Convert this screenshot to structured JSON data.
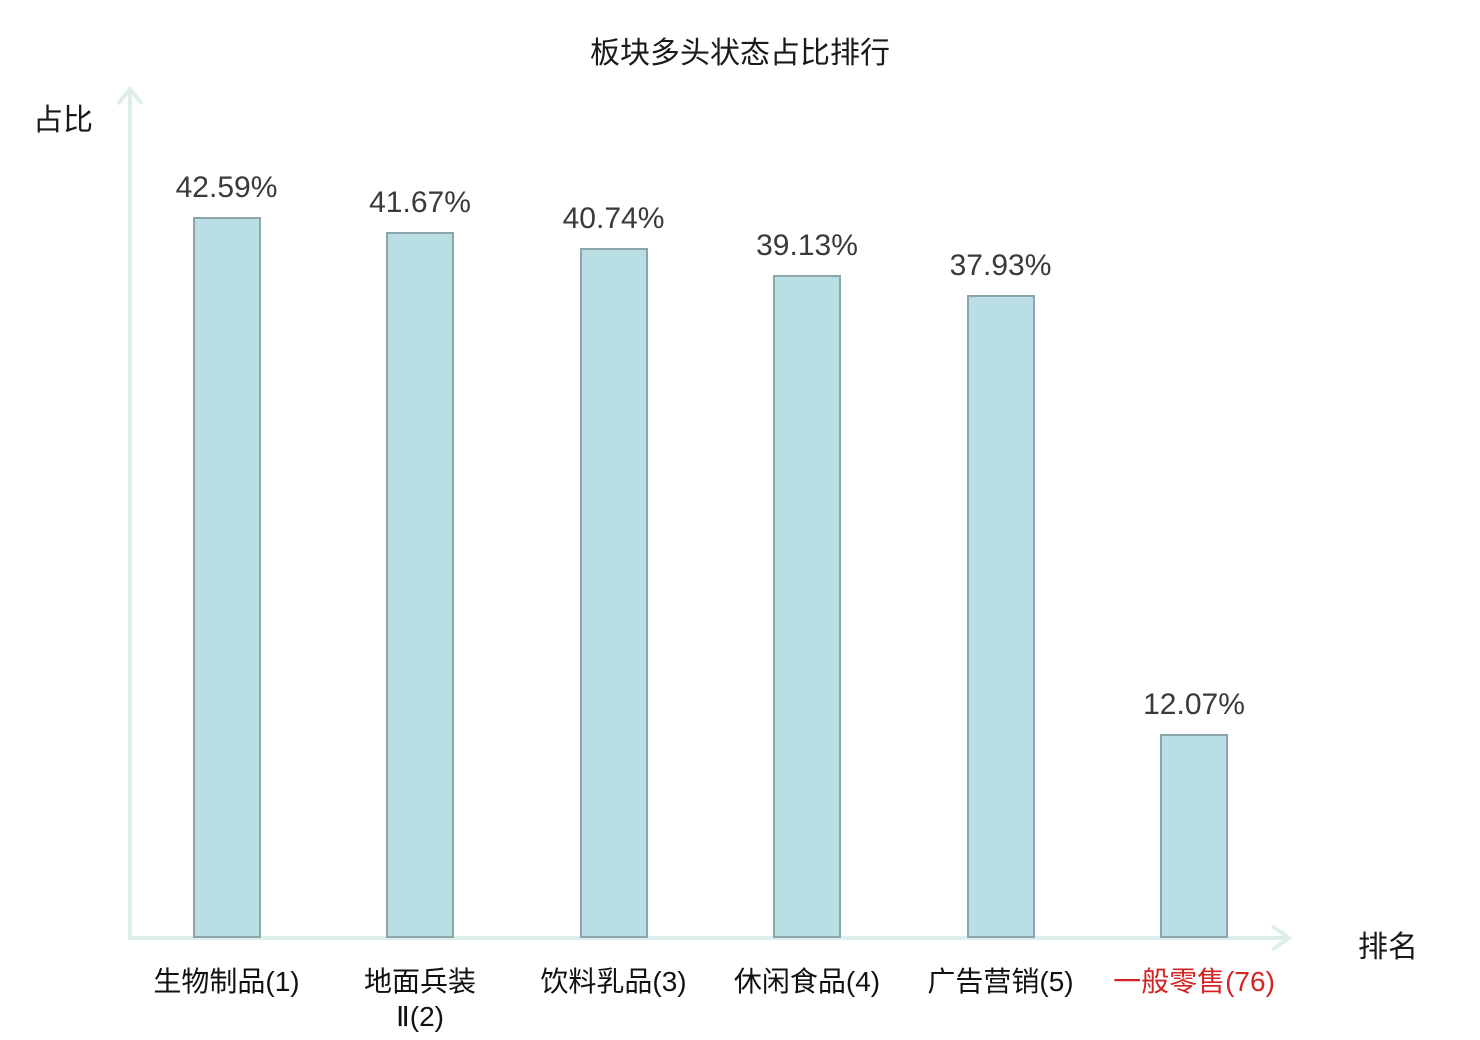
{
  "title": "板块多头状态占比排行",
  "axes": {
    "y_label": "占比",
    "x_label": "排名"
  },
  "colors": {
    "background": "#ffffff",
    "bar_fill": "#b9dee3",
    "bar_border": "#8aa6ab",
    "axis": "#deeeea",
    "title_text": "#1a1a1a",
    "value_text": "#3a3a3a",
    "tick_text": "#111111",
    "highlight_text": "#d42424"
  },
  "chart_data": {
    "type": "bar",
    "title": "板块多头状态占比排行",
    "xlabel": "排名",
    "ylabel": "占比",
    "categories": [
      "生物制品(1)",
      "地面兵装Ⅱ(2)",
      "饮料乳品(3)",
      "休闲食品(4)",
      "广告营销(5)",
      "一般零售(76)"
    ],
    "category_lines": [
      [
        "生物制品(1)"
      ],
      [
        "地面兵装",
        "Ⅱ(2)"
      ],
      [
        "饮料乳品(3)"
      ],
      [
        "休闲食品(4)"
      ],
      [
        "广告营销(5)"
      ],
      [
        "一般零售(76)"
      ]
    ],
    "ranks": [
      1,
      2,
      3,
      4,
      5,
      76
    ],
    "values": [
      42.59,
      41.67,
      40.74,
      39.13,
      37.93,
      12.07
    ],
    "value_labels": [
      "42.59%",
      "41.67%",
      "40.74%",
      "39.13%",
      "37.93%",
      "12.07%"
    ],
    "unit": "%",
    "highlighted_category_index": 5,
    "ylim": [
      0,
      50
    ],
    "grid": false,
    "legend": null
  }
}
